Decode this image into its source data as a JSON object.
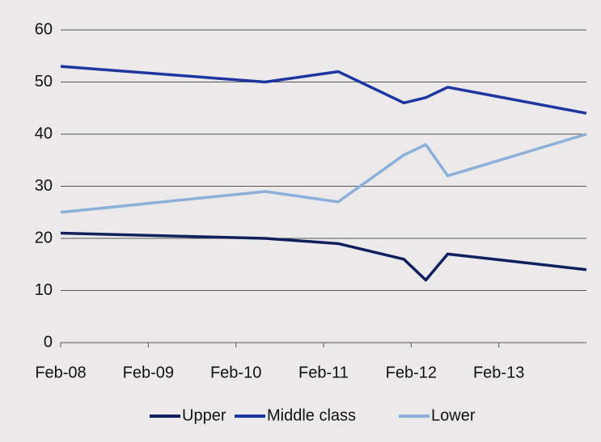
{
  "chart_data": {
    "type": "line",
    "x": [
      "Feb-08",
      "Jun-10",
      "Apr-11",
      "Jan-12",
      "Apr-12",
      "Jul-12",
      "Feb-14"
    ],
    "xlim": [
      "Feb-08",
      "Feb-14"
    ],
    "xticks": [
      "Feb-08",
      "Feb-09",
      "Feb-10",
      "Feb-11",
      "Feb-12",
      "Feb-13"
    ],
    "ylim": [
      0,
      60
    ],
    "yticks": [
      0,
      10,
      20,
      30,
      40,
      50,
      60
    ],
    "grid": true,
    "legend": "bottom",
    "series": [
      {
        "name": "Upper",
        "color": "#10205e",
        "values": [
          21,
          20,
          19,
          16,
          12,
          17,
          14
        ]
      },
      {
        "name": "Middle class",
        "color": "#1e36a0",
        "values": [
          53,
          50,
          52,
          46,
          47,
          49,
          44
        ]
      },
      {
        "name": "Lower",
        "color": "#8bb0da",
        "values": [
          25,
          29,
          27,
          36,
          38,
          32,
          40
        ]
      }
    ]
  }
}
